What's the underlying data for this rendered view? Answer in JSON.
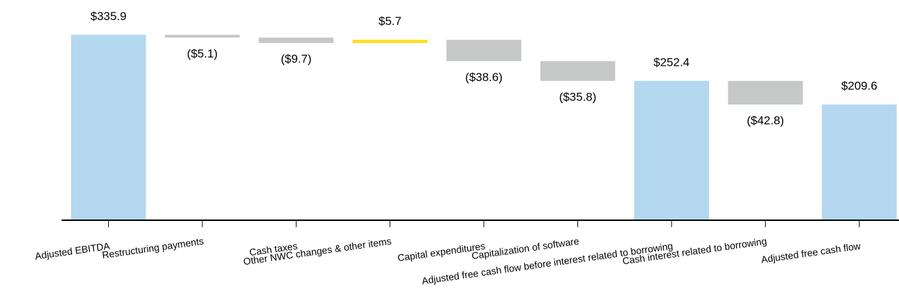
{
  "chart_data": {
    "type": "waterfall",
    "categories": [
      "Adjusted EBITDA",
      "Restructuring payments",
      "Cash taxes",
      "Other NWC changes & other items",
      "Capital expenditures",
      "Capitalization of software",
      "Adjusted free cash flow before interest related to borrowing",
      "Cash interest related to borrowing",
      "Adjusted free cash flow"
    ],
    "values": [
      335.9,
      -5.1,
      -9.7,
      5.7,
      -38.6,
      -35.8,
      252.4,
      -42.8,
      209.6
    ],
    "value_labels": [
      "$335.9",
      "($5.1)",
      "($9.7)",
      "$5.7",
      "($38.6)",
      "($35.8)",
      "$252.4",
      "($42.8)",
      "$209.6"
    ],
    "colors": [
      "#b3d8f0",
      "#c6c8c8",
      "#c6c8c8",
      "#ffdd1a",
      "#c6c8c8",
      "#c6c8c8",
      "#b3d8f0",
      "#c6c8c8",
      "#b3d8f0"
    ],
    "ylim": [
      0,
      340
    ]
  }
}
